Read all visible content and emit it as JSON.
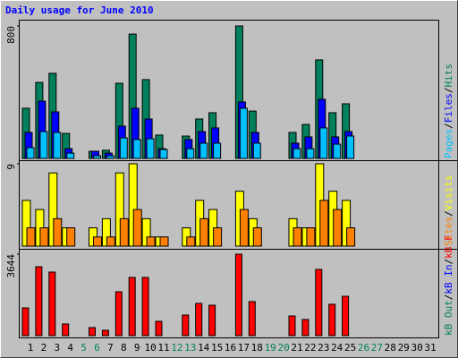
{
  "title": "Daily usage for June 2010",
  "chart_data": [
    {
      "type": "bar",
      "ylim": [
        0,
        800
      ],
      "yticks": [
        800
      ],
      "legend_separator": "/",
      "series": [
        {
          "name": "Hits",
          "color": "#00805c",
          "values": [
            303,
            459,
            514,
            151,
            0,
            43,
            49,
            454,
            751,
            476,
            141,
            0,
            135,
            238,
            276,
            0,
            800,
            286,
            0,
            0,
            157,
            205,
            595,
            276,
            330,
            0,
            0,
            0,
            0,
            0,
            0
          ]
        },
        {
          "name": "Files",
          "color": "#0000ff",
          "values": [
            157,
            346,
            281,
            59,
            0,
            43,
            32,
            195,
            303,
            238,
            59,
            0,
            114,
            162,
            184,
            0,
            341,
            157,
            0,
            0,
            92,
            130,
            357,
            130,
            162,
            0,
            0,
            0,
            0,
            0,
            0
          ]
        },
        {
          "name": "Pages",
          "color": "#00c0ff",
          "values": [
            65,
            162,
            157,
            32,
            0,
            16,
            16,
            124,
            114,
            119,
            54,
            0,
            59,
            92,
            92,
            0,
            303,
            92,
            0,
            0,
            59,
            59,
            184,
            86,
            135,
            0,
            0,
            0,
            0,
            0,
            0
          ]
        }
      ]
    },
    {
      "type": "bar",
      "ylim": [
        0,
        9
      ],
      "yticks": [
        9
      ],
      "legend_separator": "/",
      "series": [
        {
          "name": "Visits",
          "color": "#ffff00",
          "values": [
            5,
            4,
            8,
            2,
            0,
            2,
            3,
            8,
            9,
            3,
            1,
            0,
            2,
            5,
            4,
            0,
            6,
            3,
            0,
            0,
            3,
            2,
            9,
            6,
            5,
            0,
            0,
            0,
            0,
            0,
            0
          ]
        },
        {
          "name": "Sites",
          "color": "#ff8000",
          "values": [
            2,
            2,
            3,
            2,
            0,
            1,
            1,
            3,
            4,
            1,
            1,
            0,
            1,
            3,
            2,
            0,
            4,
            2,
            0,
            0,
            2,
            2,
            5,
            4,
            2,
            0,
            0,
            0,
            0,
            0,
            0
          ]
        }
      ]
    },
    {
      "type": "bar",
      "ylim": [
        0,
        3644
      ],
      "yticks": [
        3644
      ],
      "legend_separator": "/",
      "categories": [
        "1",
        "2",
        "3",
        "4",
        "5",
        "6",
        "7",
        "8",
        "9",
        "10",
        "11",
        "12",
        "13",
        "14",
        "15",
        "16",
        "17",
        "18",
        "19",
        "20",
        "21",
        "22",
        "23",
        "24",
        "25",
        "26",
        "27",
        "28",
        "29",
        "30",
        "31"
      ],
      "category_colors": [
        "#000000",
        "#000000",
        "#000000",
        "#000000",
        "#00805c",
        "#00805c",
        "#000000",
        "#000000",
        "#000000",
        "#000000",
        "#000000",
        "#00805c",
        "#00805c",
        "#000000",
        "#000000",
        "#000000",
        "#000000",
        "#000000",
        "#00805c",
        "#00805c",
        "#000000",
        "#000000",
        "#000000",
        "#000000",
        "#000000",
        "#00805c",
        "#00805c",
        "#000000",
        "#000000",
        "#000000",
        "#000000"
      ],
      "series": [
        {
          "name": "kB F",
          "color": "#ff0000",
          "values": [
            1241,
            3083,
            2843,
            521,
            0,
            360,
            240,
            1962,
            2603,
            2603,
            641,
            0,
            921,
            1442,
            1361,
            0,
            3644,
            1522,
            0,
            0,
            881,
            721,
            2963,
            1402,
            1762,
            0,
            0,
            0,
            0,
            0,
            0
          ]
        },
        {
          "name": "kB In",
          "color": "#0000ff",
          "values": [
            0,
            0,
            0,
            0,
            0,
            0,
            0,
            0,
            0,
            0,
            0,
            0,
            0,
            0,
            0,
            0,
            0,
            0,
            0,
            0,
            0,
            0,
            0,
            0,
            0,
            0,
            0,
            0,
            0,
            0,
            0
          ]
        },
        {
          "name": "kB Out",
          "color": "#00805c",
          "values": [
            0,
            0,
            0,
            0,
            0,
            0,
            0,
            0,
            0,
            0,
            0,
            0,
            0,
            0,
            0,
            0,
            0,
            0,
            0,
            0,
            0,
            0,
            0,
            0,
            0,
            0,
            0,
            0,
            0,
            0,
            0
          ]
        }
      ]
    }
  ]
}
